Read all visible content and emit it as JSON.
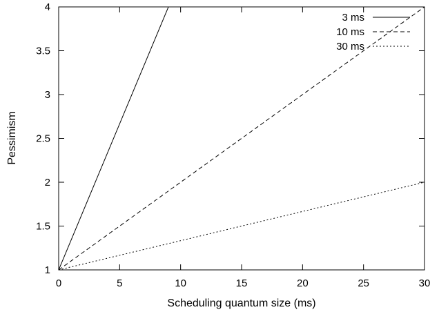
{
  "chart_data": {
    "type": "line",
    "title": "",
    "xlabel": "Scheduling quantum size (ms)",
    "ylabel": "Pessimism",
    "xlim": [
      0,
      30
    ],
    "ylim": [
      1,
      4
    ],
    "x_ticks": [
      0,
      5,
      10,
      15,
      20,
      25,
      30
    ],
    "y_ticks": [
      1,
      1.5,
      2,
      2.5,
      3,
      3.5,
      4
    ],
    "x_tick_labels": [
      "0",
      "5",
      "10",
      "15",
      "20",
      "25",
      "30"
    ],
    "y_tick_labels": [
      "1",
      "1.5",
      "2",
      "2.5",
      "3",
      "3.5",
      "4"
    ],
    "grid": false,
    "legend_position": "top-right",
    "series": [
      {
        "name": "3 ms",
        "style": "solid",
        "x": [
          0,
          9
        ],
        "y": [
          1,
          4
        ]
      },
      {
        "name": "10 ms",
        "style": "dashed",
        "x": [
          0,
          30
        ],
        "y": [
          1,
          4
        ]
      },
      {
        "name": "30 ms",
        "style": "dotted",
        "x": [
          0,
          30
        ],
        "y": [
          1,
          2
        ]
      }
    ]
  }
}
